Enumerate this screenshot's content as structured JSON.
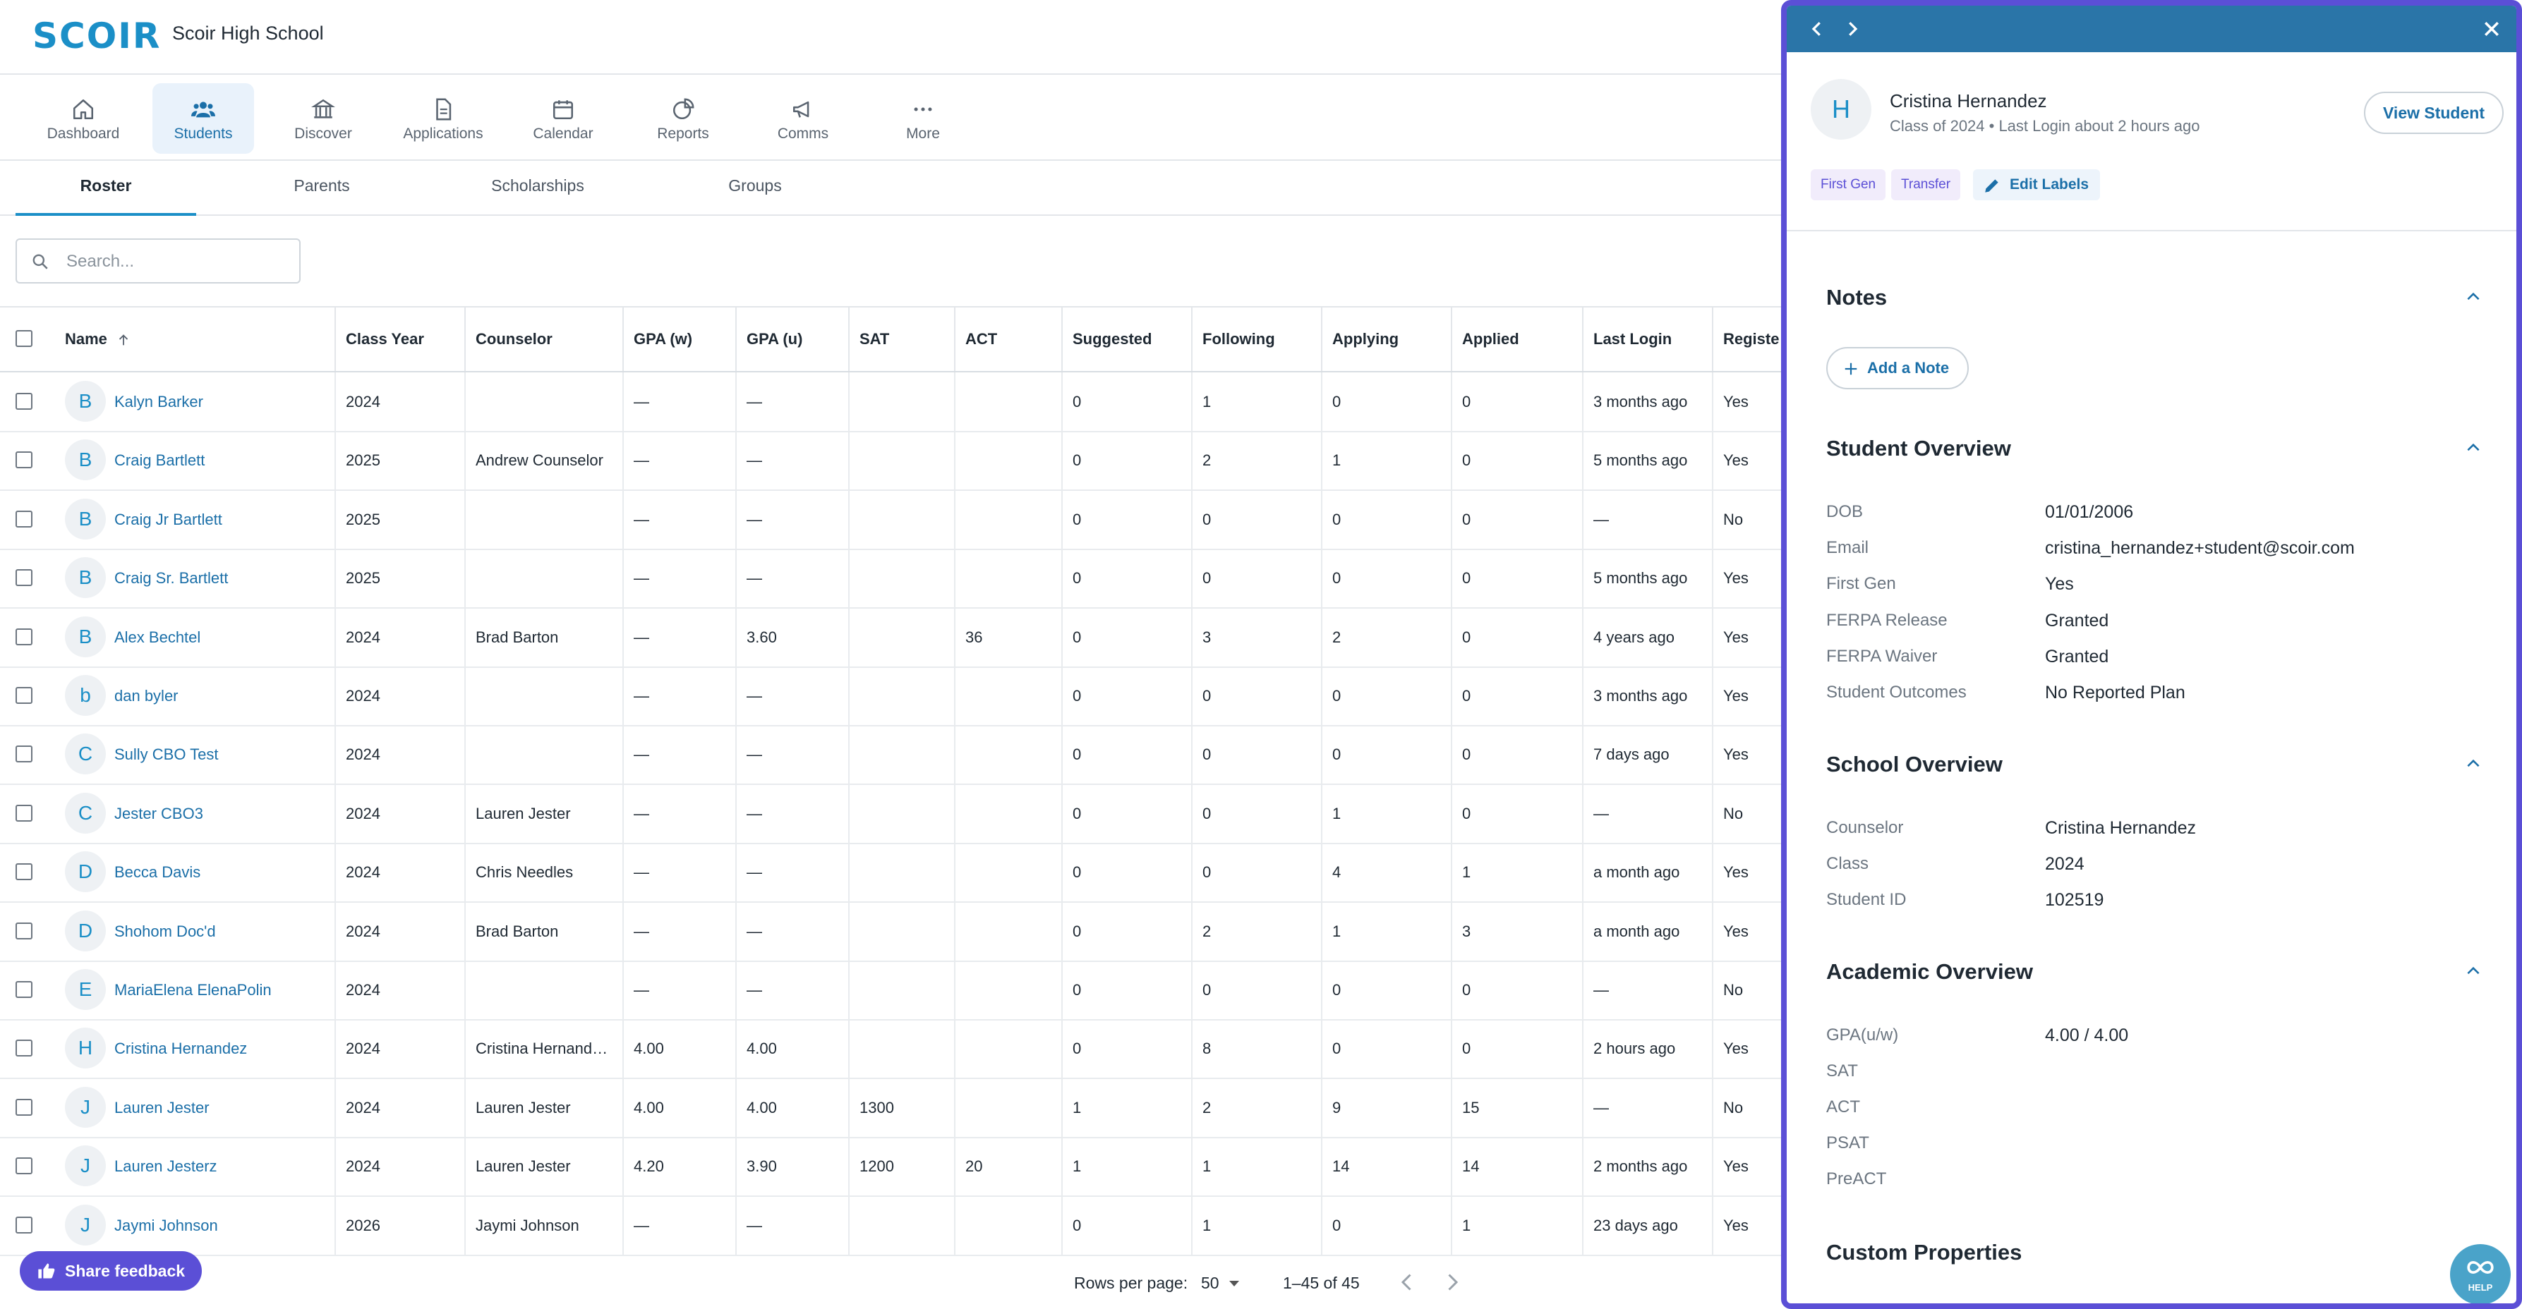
{
  "header": {
    "logo": "SCOIR",
    "school_name": "Scoir High School"
  },
  "nav": [
    {
      "label": "Dashboard",
      "icon": "home-icon"
    },
    {
      "label": "Students",
      "icon": "students-icon",
      "active": true
    },
    {
      "label": "Discover",
      "icon": "institution-icon"
    },
    {
      "label": "Applications",
      "icon": "document-icon"
    },
    {
      "label": "Calendar",
      "icon": "calendar-icon"
    },
    {
      "label": "Reports",
      "icon": "pie-chart-icon"
    },
    {
      "label": "Comms",
      "icon": "megaphone-icon"
    },
    {
      "label": "More",
      "icon": "more-dots-icon"
    }
  ],
  "tabs": [
    {
      "label": "Roster",
      "active": true
    },
    {
      "label": "Parents"
    },
    {
      "label": "Scholarships"
    },
    {
      "label": "Groups"
    }
  ],
  "search": {
    "placeholder": "Search..."
  },
  "table": {
    "columns": [
      "Name",
      "Class Year",
      "Counselor",
      "GPA (w)",
      "GPA (u)",
      "SAT",
      "ACT",
      "Suggested",
      "Following",
      "Applying",
      "Applied",
      "Last Login",
      "Registe"
    ],
    "sort_column": "Name",
    "rows": [
      {
        "initial": "B",
        "name": "Kalyn Barker",
        "year": "2024",
        "counselor": "",
        "gpa_w": "—",
        "gpa_u": "—",
        "sat": "",
        "act": "",
        "suggested": "0",
        "following": "1",
        "applying": "0",
        "applied": "0",
        "last_login": "3 months ago",
        "registered": "Yes"
      },
      {
        "initial": "B",
        "name": "Craig Bartlett",
        "year": "2025",
        "counselor": "Andrew Counselor",
        "gpa_w": "—",
        "gpa_u": "—",
        "sat": "",
        "act": "",
        "suggested": "0",
        "following": "2",
        "applying": "1",
        "applied": "0",
        "last_login": "5 months ago",
        "registered": "Yes"
      },
      {
        "initial": "B",
        "name": "Craig Jr Bartlett",
        "year": "2025",
        "counselor": "",
        "gpa_w": "—",
        "gpa_u": "—",
        "sat": "",
        "act": "",
        "suggested": "0",
        "following": "0",
        "applying": "0",
        "applied": "0",
        "last_login": "—",
        "registered": "No"
      },
      {
        "initial": "B",
        "name": "Craig Sr. Bartlett",
        "year": "2025",
        "counselor": "",
        "gpa_w": "—",
        "gpa_u": "—",
        "sat": "",
        "act": "",
        "suggested": "0",
        "following": "0",
        "applying": "0",
        "applied": "0",
        "last_login": "5 months ago",
        "registered": "Yes"
      },
      {
        "initial": "B",
        "name": "Alex Bechtel",
        "year": "2024",
        "counselor": "Brad Barton",
        "gpa_w": "—",
        "gpa_u": "3.60",
        "sat": "",
        "act": "36",
        "suggested": "0",
        "following": "3",
        "applying": "2",
        "applied": "0",
        "last_login": "4 years ago",
        "registered": "Yes"
      },
      {
        "initial": "b",
        "name": "dan byler",
        "year": "2024",
        "counselor": "",
        "gpa_w": "—",
        "gpa_u": "—",
        "sat": "",
        "act": "",
        "suggested": "0",
        "following": "0",
        "applying": "0",
        "applied": "0",
        "last_login": "3 months ago",
        "registered": "Yes"
      },
      {
        "initial": "C",
        "name": "Sully CBO Test",
        "year": "2024",
        "counselor": "",
        "gpa_w": "—",
        "gpa_u": "—",
        "sat": "",
        "act": "",
        "suggested": "0",
        "following": "0",
        "applying": "0",
        "applied": "0",
        "last_login": "7 days ago",
        "registered": "Yes"
      },
      {
        "initial": "C",
        "name": "Jester CBO3",
        "year": "2024",
        "counselor": "Lauren Jester",
        "gpa_w": "—",
        "gpa_u": "—",
        "sat": "",
        "act": "",
        "suggested": "0",
        "following": "0",
        "applying": "1",
        "applied": "0",
        "last_login": "—",
        "registered": "No"
      },
      {
        "initial": "D",
        "name": "Becca Davis",
        "year": "2024",
        "counselor": "Chris Needles",
        "gpa_w": "—",
        "gpa_u": "—",
        "sat": "",
        "act": "",
        "suggested": "0",
        "following": "0",
        "applying": "4",
        "applied": "1",
        "last_login": "a month ago",
        "registered": "Yes"
      },
      {
        "initial": "D",
        "name": "Shohom Doc'd",
        "year": "2024",
        "counselor": "Brad Barton",
        "gpa_w": "—",
        "gpa_u": "—",
        "sat": "",
        "act": "",
        "suggested": "0",
        "following": "2",
        "applying": "1",
        "applied": "3",
        "last_login": "a month ago",
        "registered": "Yes"
      },
      {
        "initial": "E",
        "name": "MariaElena ElenaPolin",
        "year": "2024",
        "counselor": "",
        "gpa_w": "—",
        "gpa_u": "—",
        "sat": "",
        "act": "",
        "suggested": "0",
        "following": "0",
        "applying": "0",
        "applied": "0",
        "last_login": "—",
        "registered": "No"
      },
      {
        "initial": "H",
        "name": "Cristina Hernandez",
        "year": "2024",
        "counselor": "Cristina Hernand…",
        "gpa_w": "4.00",
        "gpa_u": "4.00",
        "sat": "",
        "act": "",
        "suggested": "0",
        "following": "8",
        "applying": "0",
        "applied": "0",
        "last_login": "2 hours ago",
        "registered": "Yes"
      },
      {
        "initial": "J",
        "name": "Lauren Jester",
        "year": "2024",
        "counselor": "Lauren Jester",
        "gpa_w": "4.00",
        "gpa_u": "4.00",
        "sat": "1300",
        "act": "",
        "suggested": "1",
        "following": "2",
        "applying": "9",
        "applied": "15",
        "last_login": "—",
        "registered": "No"
      },
      {
        "initial": "J",
        "name": "Lauren Jesterz",
        "year": "2024",
        "counselor": "Lauren Jester",
        "gpa_w": "4.20",
        "gpa_u": "3.90",
        "sat": "1200",
        "act": "20",
        "suggested": "1",
        "following": "1",
        "applying": "14",
        "applied": "14",
        "last_login": "2 months ago",
        "registered": "Yes"
      },
      {
        "initial": "J",
        "name": "Jaymi Johnson",
        "year": "2026",
        "counselor": "Jaymi Johnson",
        "gpa_w": "—",
        "gpa_u": "—",
        "sat": "",
        "act": "",
        "suggested": "0",
        "following": "1",
        "applying": "0",
        "applied": "1",
        "last_login": "23 days ago",
        "registered": "Yes"
      }
    ]
  },
  "footer": {
    "feedback_label": "Share feedback",
    "rows_per_page_label": "Rows per page:",
    "rows_per_page_value": "50",
    "range": "1–45 of 45"
  },
  "panel": {
    "student": {
      "initial": "H",
      "name": "Cristina Hernandez",
      "subtitle": "Class of 2024 • Last Login about 2 hours ago",
      "view_button": "View Student",
      "labels": [
        "First Gen",
        "Transfer"
      ],
      "edit_labels": "Edit Labels"
    },
    "notes": {
      "title": "Notes",
      "add_note": "Add a Note"
    },
    "student_overview": {
      "title": "Student Overview",
      "fields": [
        {
          "k": "DOB",
          "v": "01/01/2006"
        },
        {
          "k": "Email",
          "v": "cristina_hernandez+student@scoir.com"
        },
        {
          "k": "First Gen",
          "v": "Yes"
        },
        {
          "k": "FERPA Release",
          "v": "Granted"
        },
        {
          "k": "FERPA Waiver",
          "v": "Granted"
        },
        {
          "k": "Student Outcomes",
          "v": "No Reported Plan"
        }
      ]
    },
    "school_overview": {
      "title": "School Overview",
      "fields": [
        {
          "k": "Counselor",
          "v": "Cristina Hernandez"
        },
        {
          "k": "Class",
          "v": "2024"
        },
        {
          "k": "Student ID",
          "v": "102519"
        }
      ]
    },
    "academic_overview": {
      "title": "Academic Overview",
      "fields": [
        {
          "k": "GPA(u/w)",
          "v": "4.00 / 4.00"
        },
        {
          "k": "SAT",
          "v": ""
        },
        {
          "k": "ACT",
          "v": ""
        },
        {
          "k": "PSAT",
          "v": ""
        },
        {
          "k": "PreACT",
          "v": ""
        }
      ]
    },
    "custom_properties": {
      "title": "Custom Properties"
    },
    "help_label": "HELP"
  }
}
